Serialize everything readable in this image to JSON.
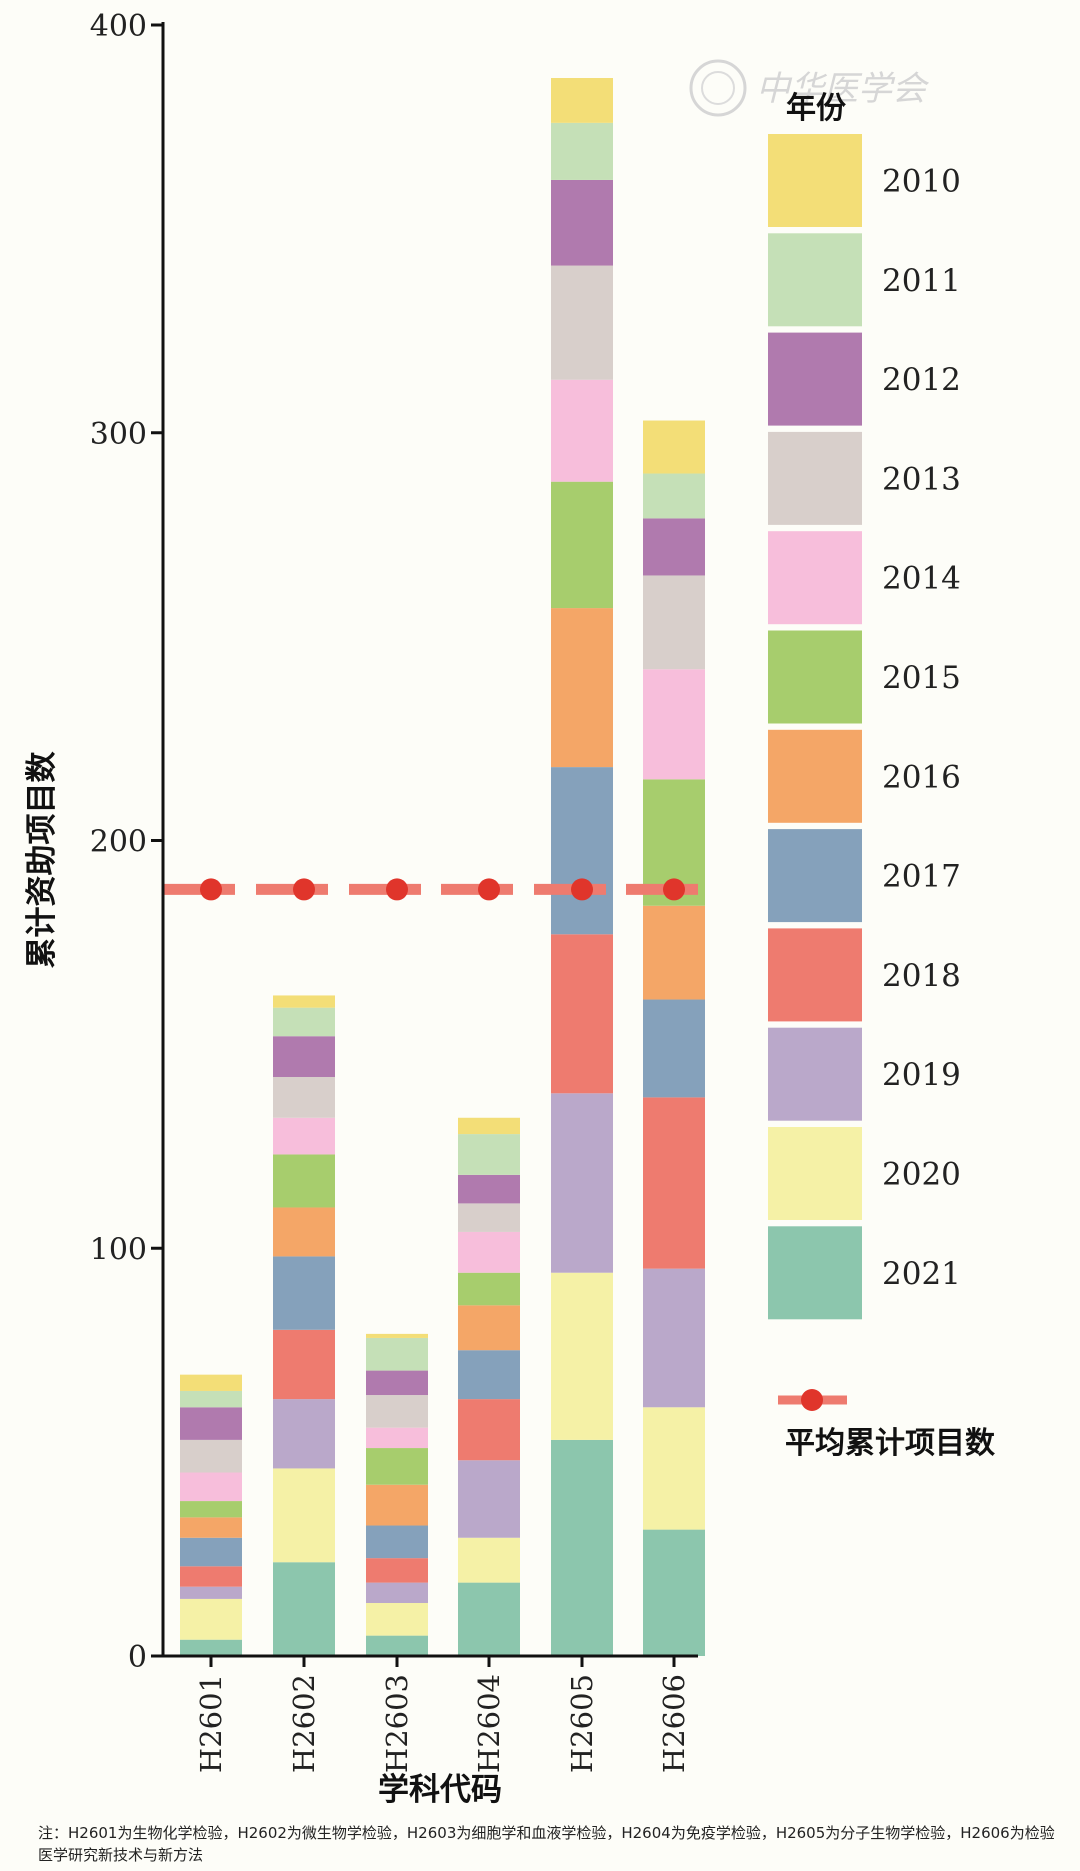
{
  "chart_data": {
    "type": "bar",
    "stacked": true,
    "categories": [
      "H2601",
      "H2602",
      "H2603",
      "H2604",
      "H2605",
      "H2606"
    ],
    "ylabel": "累计资助项目数",
    "xlabel": "学科代码",
    "ylim": [
      0,
      400
    ],
    "yticks": [
      0,
      100,
      200,
      300,
      400
    ],
    "legend_title": "年份",
    "legend_placement": "right",
    "series": [
      {
        "name": "2021",
        "color": "#8cc6ad",
        "values": [
          4,
          23,
          5,
          18,
          53,
          31
        ]
      },
      {
        "name": "2020",
        "color": "#f5f1a6",
        "values": [
          10,
          23,
          8,
          11,
          41,
          30
        ]
      },
      {
        "name": "2019",
        "color": "#baa8ca",
        "values": [
          3,
          17,
          5,
          19,
          44,
          34
        ]
      },
      {
        "name": "2018",
        "color": "#ee7b6f",
        "values": [
          5,
          17,
          6,
          15,
          39,
          42
        ]
      },
      {
        "name": "2017",
        "color": "#85a1bb",
        "values": [
          7,
          18,
          8,
          12,
          41,
          24
        ]
      },
      {
        "name": "2016",
        "color": "#f4a667",
        "values": [
          5,
          12,
          10,
          11,
          39,
          23
        ]
      },
      {
        "name": "2015",
        "color": "#a7cd6d",
        "values": [
          4,
          13,
          9,
          8,
          31,
          31
        ]
      },
      {
        "name": "2014",
        "color": "#f7bedb",
        "values": [
          7,
          9,
          5,
          10,
          25,
          27
        ]
      },
      {
        "name": "2013",
        "color": "#d8cfcb",
        "values": [
          8,
          10,
          8,
          7,
          28,
          23
        ]
      },
      {
        "name": "2012",
        "color": "#b07aae",
        "values": [
          8,
          10,
          6,
          7,
          21,
          14
        ]
      },
      {
        "name": "2011",
        "color": "#c5e0b7",
        "values": [
          4,
          7,
          8,
          10,
          14,
          11
        ]
      },
      {
        "name": "2010",
        "color": "#f3de77",
        "values": [
          4,
          3,
          1,
          4,
          11,
          13
        ]
      }
    ],
    "average": {
      "name": "平均累计项目数",
      "value": 188,
      "color": "#e0352b",
      "line_color": "#ee7b6f"
    }
  },
  "watermark": "中华医学会",
  "note": "注：H2601为生物化学检验，H2602为微生物学检验，H2603为细胞学和血液学检验，H2604为免疫学检验，H2605为分子生物学检验，H2606为检验医学研究新技术与新方法"
}
